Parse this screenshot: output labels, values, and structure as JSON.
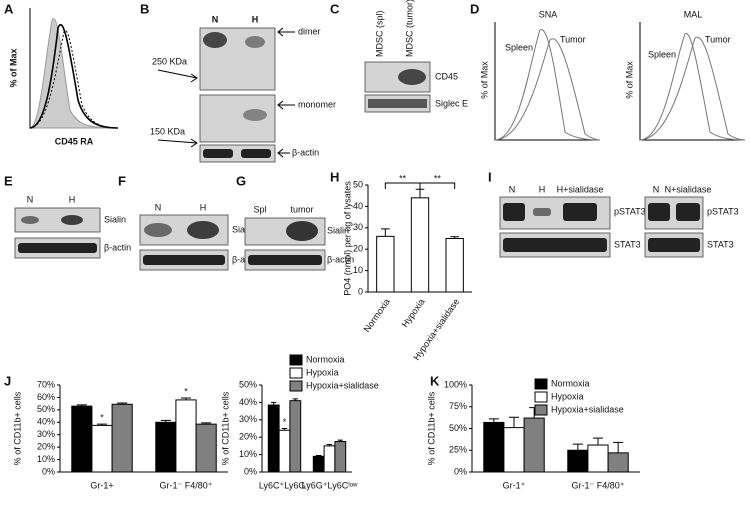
{
  "figure": {
    "letters": [
      "A",
      "B",
      "C",
      "D",
      "E",
      "F",
      "G",
      "H",
      "I",
      "J",
      "K"
    ],
    "A": {
      "y_label": "% of Max",
      "x_label": "CD45 RA"
    },
    "B": {
      "lanes": [
        "N",
        "H"
      ],
      "markers": [
        "250 KDa",
        "150 KDa"
      ],
      "bands": [
        "dimer",
        "monomer",
        "β-actin"
      ]
    },
    "C": {
      "lanes": [
        "MDSC (spl)",
        "MDSC (tumor)"
      ],
      "bands": [
        "CD45",
        "Siglec E"
      ]
    },
    "D": {
      "y_label": "% of Max",
      "plots": [
        {
          "title": "SNA",
          "curves": [
            "Spleen",
            "Tumor"
          ]
        },
        {
          "title": "MAL",
          "curves": [
            "Spleen",
            "Tumor"
          ]
        }
      ]
    },
    "E": {
      "lanes": [
        "N",
        "H"
      ],
      "bands": [
        "Sialin",
        "β-actin"
      ]
    },
    "F": {
      "lanes": [
        "N",
        "H"
      ],
      "bands": [
        "Sialin",
        "β-actin"
      ]
    },
    "G": {
      "lanes": [
        "Spl",
        "tumor"
      ],
      "bands": [
        "Sialin",
        "β-actin"
      ]
    },
    "I": {
      "left": {
        "lanes": [
          "N",
          "H",
          "H+sialidase"
        ],
        "bands": [
          "pSTAT3",
          "STAT3"
        ]
      },
      "right": {
        "lanes": [
          "N",
          "N+sialidase"
        ],
        "bands": [
          "pSTAT3",
          "STAT3"
        ]
      }
    }
  },
  "chart_data": [
    {
      "type": "bar",
      "y_label": "PO4 (nmol) per ug of lysates",
      "categories": [
        "Normoxia",
        "Hypoxia",
        "Hypoxia+sialidase"
      ],
      "series": [
        {
          "color": "#ffffff",
          "values": [
            26,
            44,
            25
          ],
          "errors": [
            3.5,
            4,
            0.8
          ]
        }
      ],
      "ylim": [
        0,
        50
      ],
      "yticks": [
        0,
        10,
        20,
        30,
        40,
        50
      ],
      "annotations": [
        "**",
        "**"
      ]
    },
    {
      "type": "bar",
      "y_label": "% of CD11b+ cells",
      "categories": [
        "Gr-1+",
        "Gr-1⁻ F4/80⁺"
      ],
      "series": [
        {
          "color": "#000000",
          "values": [
            53,
            40
          ],
          "errors": [
            1,
            1.5
          ]
        },
        {
          "color": "#ffffff",
          "values": [
            37.5,
            58
          ],
          "errors": [
            1,
            1.5
          ]
        },
        {
          "color": "#808080",
          "values": [
            54.5,
            38.5
          ],
          "errors": [
            1,
            1
          ]
        }
      ],
      "ylim": [
        0,
        70
      ],
      "yticks": [
        {
          "value": 0,
          "label": "0%"
        },
        {
          "value": 10,
          "label": "10%"
        },
        {
          "value": 20,
          "label": "20%"
        },
        {
          "value": 30,
          "label": "30%"
        },
        {
          "value": 40,
          "label": "40%"
        },
        {
          "value": 50,
          "label": "50%"
        },
        {
          "value": 60,
          "label": "60%"
        },
        {
          "value": 70,
          "label": "70%"
        }
      ],
      "annotations": [
        "*",
        "*"
      ]
    },
    {
      "type": "bar",
      "y_label": "% of CD11b+ cells",
      "categories": [
        "Ly6C⁺Ly6G⁻",
        "Ly6G⁺Ly6Cˡᵒʷ"
      ],
      "series": [
        {
          "name": "Normoxia",
          "color": "#000000",
          "values": [
            38.5,
            9
          ],
          "errors": [
            1.5,
            0.5
          ]
        },
        {
          "name": "Hypoxia",
          "color": "#ffffff",
          "values": [
            24,
            15
          ],
          "errors": [
            1,
            0.8
          ]
        },
        {
          "name": "Hypoxia+sialidase",
          "color": "#808080",
          "values": [
            41,
            17.5
          ],
          "errors": [
            1,
            0.8
          ]
        }
      ],
      "ylim": [
        0,
        50
      ],
      "yticks": [
        {
          "value": 0,
          "label": "0%"
        },
        {
          "value": 10,
          "label": "10%"
        },
        {
          "value": 20,
          "label": "20%"
        },
        {
          "value": 30,
          "label": "30%"
        },
        {
          "value": 40,
          "label": "40%"
        },
        {
          "value": 50,
          "label": "50%"
        }
      ],
      "annotations": [
        "*"
      ],
      "legend": "upper right"
    },
    {
      "type": "bar",
      "y_label": "% of CD11b+ cells",
      "categories": [
        "Gr-1⁺",
        "Gr-1⁻ F4/80⁺"
      ],
      "series": [
        {
          "name": "Normoxia",
          "color": "#000000",
          "values": [
            57,
            25
          ],
          "errors": [
            4,
            7
          ]
        },
        {
          "name": "Hypoxia",
          "color": "#ffffff",
          "values": [
            51,
            31
          ],
          "errors": [
            12,
            8
          ]
        },
        {
          "name": "Hypoxia+sialidase",
          "color": "#808080",
          "values": [
            62,
            22
          ],
          "errors": [
            12,
            12
          ]
        }
      ],
      "ylim": [
        0,
        100
      ],
      "yticks": [
        {
          "value": 0,
          "label": "0%"
        },
        {
          "value": 25,
          "label": "25%"
        },
        {
          "value": 50,
          "label": "50%"
        },
        {
          "value": 75,
          "label": "75%"
        },
        {
          "value": 100,
          "label": "100%"
        }
      ],
      "legend": "upper right"
    }
  ]
}
